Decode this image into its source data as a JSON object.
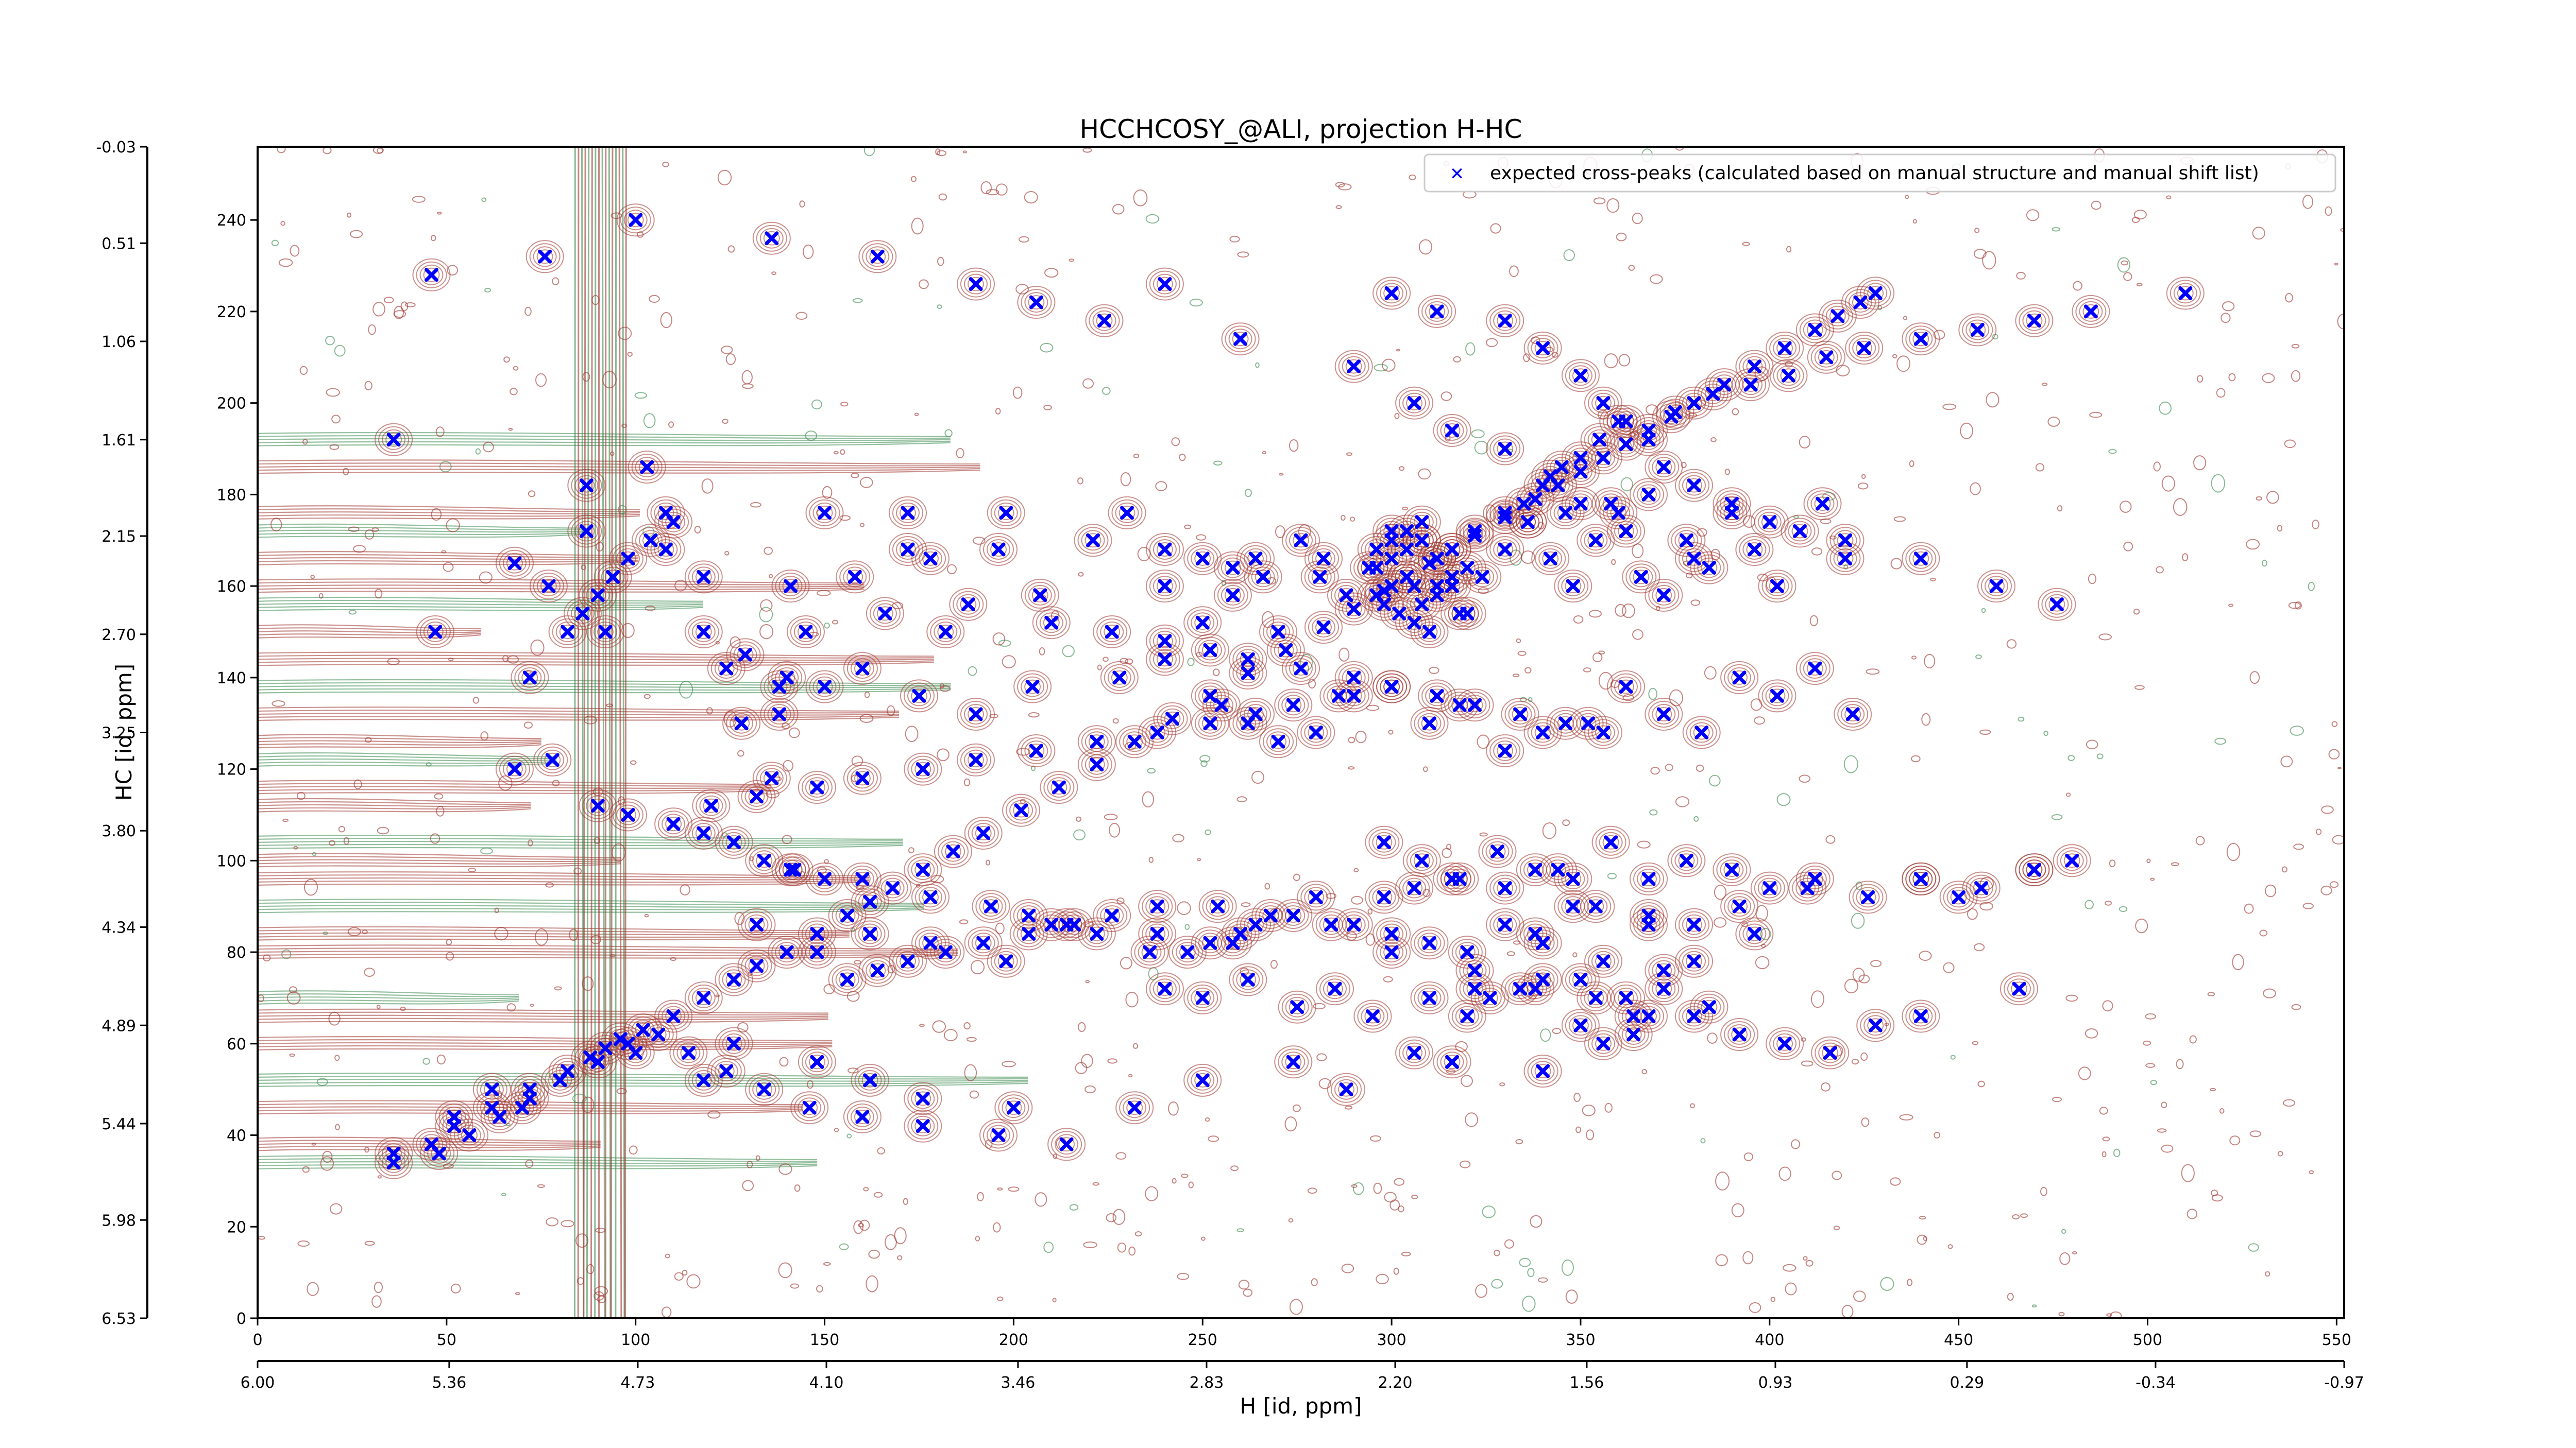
{
  "chart_data": {
    "type": "scatter",
    "title": "HCCHCOSY_@ALI, projection H-HC",
    "xlabel": "H [id, ppm]",
    "ylabel": "HC [id, ppm]",
    "x_index_ticks": [
      "0",
      "50",
      "100",
      "150",
      "200",
      "250",
      "300",
      "350",
      "400",
      "450",
      "500",
      "550"
    ],
    "x_ppm_ticks": [
      "6.00",
      "5.36",
      "4.73",
      "4.10",
      "3.46",
      "2.83",
      "2.20",
      "1.56",
      "0.93",
      "0.29",
      "-0.34",
      "-0.97"
    ],
    "y_index_ticks": [
      "0",
      "20",
      "40",
      "60",
      "80",
      "100",
      "120",
      "140",
      "160",
      "180",
      "200",
      "220",
      "240"
    ],
    "y_ppm_ticks": [
      "6.53",
      "5.98",
      "5.44",
      "4.89",
      "4.34",
      "3.80",
      "3.25",
      "2.70",
      "2.15",
      "1.61",
      "1.06",
      "0.51",
      "-0.03"
    ],
    "xlim": [
      0,
      552
    ],
    "ylim": [
      0,
      256
    ],
    "xppm_range": [
      6.0,
      -0.97
    ],
    "yppm_range": [
      6.53,
      -0.03
    ],
    "grid": false,
    "legend_position": "top-right",
    "series": [
      {
        "name": "expected cross-peaks (calculated based on manual structure and manual shift list)",
        "color": "#0000ff",
        "marker": "x",
        "x": [
          36,
          46,
          52,
          62,
          72,
          82,
          88,
          92,
          96,
          102,
          110,
          118,
          126,
          132,
          140,
          148,
          156,
          162,
          168,
          176,
          184,
          192,
          202,
          212,
          222,
          232,
          242,
          252,
          262,
          272,
          282,
          290,
          298,
          304,
          310,
          316,
          322,
          330,
          338,
          344,
          350,
          356,
          362,
          368,
          374,
          380,
          388,
          396,
          404,
          412,
          418,
          424,
          428,
          36,
          47,
          68,
          72,
          77,
          87,
          87,
          92,
          103,
          108,
          108,
          118,
          118,
          124,
          128,
          129,
          136,
          138,
          138,
          141,
          145,
          141,
          150,
          158,
          166,
          172,
          172,
          178,
          182,
          188,
          196,
          198,
          207,
          221,
          230,
          240,
          250,
          258,
          264,
          270,
          276,
          281,
          288,
          294,
          300,
          306,
          312,
          318,
          324,
          330,
          336,
          342,
          348,
          354,
          360,
          366,
          372,
          378,
          384,
          390,
          396,
          402,
          408,
          414,
          420,
          296,
          300,
          304,
          308,
          312,
          316,
          320,
          296,
          300,
          304,
          308,
          312,
          316,
          320,
          300,
          304,
          308,
          312,
          316,
          310,
          306,
          302,
          298,
          330,
          335,
          340,
          345,
          350,
          355,
          360,
          375,
          385,
          395,
          405,
          415,
          425,
          440,
          455,
          470,
          485,
          510,
          140,
          150,
          160,
          175,
          190,
          205,
          228,
          240,
          255,
          262,
          270,
          280,
          290,
          300,
          310,
          318,
          330,
          340,
          352,
          362,
          372,
          382,
          392,
          402,
          412,
          422,
          68,
          78,
          90,
          98,
          110,
          118,
          126,
          134,
          142,
          150,
          160,
          178,
          194,
          204,
          210,
          222,
          238,
          246,
          252,
          258,
          268,
          280,
          290,
          300,
          310,
          320,
          330,
          338,
          348,
          254,
          264,
          274,
          284,
          298,
          306,
          316,
          330,
          344,
          354,
          368,
          380,
          392,
          410,
          440,
          450,
          470,
          298,
          308,
          318,
          328,
          338,
          348,
          358,
          368,
          378,
          390,
          400,
          412,
          426,
          440,
          456,
          470,
          480,
          132,
          148,
          162,
          178,
          198,
          216,
          236,
          260,
          300,
          322,
          340,
          356,
          368,
          380,
          396,
          240,
          250,
          262,
          275,
          285,
          295,
          310,
          322,
          340,
          354,
          364,
          372,
          384,
          48,
          56,
          64,
          72,
          80,
          90,
          98,
          106,
          114,
          124,
          134,
          146,
          160,
          176,
          196,
          36,
          52,
          62,
          70,
          100,
          118,
          126,
          148,
          162,
          176,
          200,
          214,
          232,
          250,
          274,
          288,
          306,
          320,
          338,
          350,
          362,
          372,
          380,
          392,
          404,
          416,
          428,
          440,
          466,
          240,
          300,
          312,
          330,
          340,
          350,
          356,
          362,
          368,
          372,
          380,
          390,
          400,
          420,
          440,
          460,
          476,
          46,
          76,
          100,
          136,
          164,
          190,
          206,
          224,
          260,
          290,
          306,
          316,
          330,
          342,
          350,
          362,
          380,
          316,
          340,
          356,
          364,
          368,
          326,
          334,
          350,
          240,
          250,
          258,
          266,
          282,
          296,
          308,
          322,
          336,
          346,
          358,
          368,
          210,
          226,
          240,
          252,
          262,
          276,
          290,
          300,
          312,
          322,
          334,
          346,
          356,
          120,
          132,
          148,
          160,
          176,
          190,
          206,
          222,
          238,
          252,
          264,
          274,
          286,
          156,
          164,
          172,
          182,
          192,
          204,
          214,
          226,
          238,
          82,
          86,
          90,
          94,
          98,
          104,
          110
        ],
        "y": [
          34,
          38,
          42,
          46,
          50,
          54,
          57,
          59,
          61,
          63,
          66,
          70,
          74,
          77,
          80,
          84,
          88,
          91,
          94,
          98,
          102,
          106,
          111,
          116,
          121,
          126,
          131,
          136,
          141,
          146,
          151,
          155,
          159,
          162,
          165,
          168,
          171,
          175,
          179,
          182,
          185,
          188,
          191,
          194,
          197,
          200,
          204,
          208,
          212,
          216,
          219,
          222,
          224,
          192,
          150,
          165,
          140,
          160,
          172,
          182,
          150,
          186,
          176,
          168,
          162,
          150,
          142,
          130,
          145,
          118,
          132,
          138,
          98,
          150,
          160,
          176,
          162,
          154,
          168,
          176,
          166,
          150,
          156,
          168,
          176,
          158,
          170,
          176,
          160,
          152,
          158,
          166,
          150,
          170,
          162,
          158,
          164,
          172,
          160,
          166,
          154,
          162,
          168,
          174,
          166,
          160,
          170,
          176,
          162,
          158,
          170,
          164,
          176,
          168,
          160,
          172,
          178,
          166,
          164,
          166,
          168,
          170,
          160,
          162,
          164,
          158,
          160,
          162,
          156,
          158,
          160,
          154,
          170,
          172,
          174,
          166,
          168,
          150,
          152,
          154,
          156,
          176,
          178,
          182,
          186,
          188,
          192,
          196,
          198,
          202,
          204,
          206,
          210,
          212,
          214,
          216,
          218,
          220,
          224,
          140,
          138,
          142,
          136,
          132,
          138,
          140,
          144,
          134,
          130,
          126,
          128,
          136,
          138,
          130,
          134,
          124,
          128,
          130,
          138,
          132,
          128,
          140,
          136,
          142,
          132,
          120,
          122,
          112,
          110,
          108,
          106,
          104,
          100,
          98,
          96,
          96,
          92,
          90,
          88,
          86,
          84,
          84,
          80,
          82,
          82,
          88,
          92,
          86,
          84,
          82,
          80,
          86,
          84,
          90,
          90,
          86,
          88,
          86,
          92,
          94,
          96,
          94,
          98,
          90,
          88,
          86,
          90,
          94,
          96,
          92,
          98,
          104,
          100,
          96,
          102,
          98,
          96,
          104,
          96,
          100,
          98,
          94,
          96,
          92,
          96,
          94,
          98,
          100,
          86,
          80,
          84,
          82,
          78,
          86,
          80,
          84,
          80,
          76,
          82,
          78,
          86,
          78,
          84,
          72,
          70,
          74,
          68,
          72,
          66,
          70,
          72,
          74,
          70,
          66,
          72,
          68,
          36,
          40,
          44,
          48,
          52,
          56,
          60,
          62,
          58,
          54,
          50,
          46,
          44,
          42,
          40,
          36,
          44,
          50,
          46,
          58,
          52,
          60,
          56,
          52,
          48,
          46,
          38,
          46,
          52,
          56,
          50,
          58,
          66,
          72,
          64,
          70,
          76,
          66,
          62,
          60,
          58,
          64,
          66,
          72,
          226,
          224,
          220,
          218,
          212,
          206,
          200,
          196,
          192,
          186,
          182,
          178,
          174,
          170,
          166,
          160,
          156,
          228,
          232,
          240,
          236,
          232,
          226,
          222,
          218,
          214,
          208,
          200,
          194,
          190,
          184,
          178,
          172,
          166,
          56,
          54,
          60,
          62,
          66,
          70,
          72,
          74,
          168,
          166,
          164,
          162,
          166,
          168,
          170,
          172,
          174,
          176,
          178,
          180,
          152,
          150,
          148,
          146,
          144,
          142,
          140,
          138,
          136,
          134,
          132,
          130,
          128,
          112,
          114,
          116,
          118,
          120,
          122,
          124,
          126,
          128,
          130,
          132,
          134,
          136,
          74,
          76,
          78,
          80,
          82,
          84,
          86,
          88,
          90,
          150,
          154,
          158,
          162,
          166,
          170,
          174
        ]
      }
    ]
  }
}
